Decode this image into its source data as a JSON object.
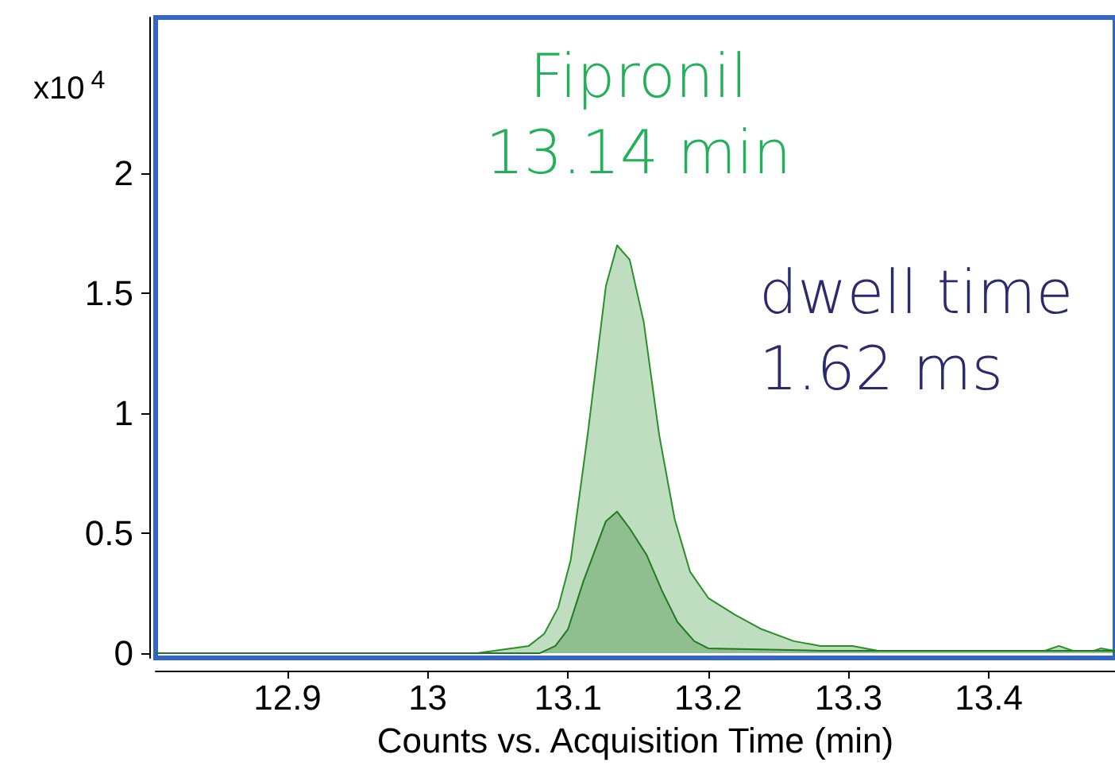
{
  "chart_data": {
    "type": "area",
    "xlabel": "Counts vs. Acquisition Time (min)",
    "ylabel": "x10$^{4}$",
    "annotations": [
      "Fipronil\n13.14 min",
      "dwell time\n1.62 ms"
    ],
    "xlim": [
      12.806,
      13.49
    ],
    "xticks": [
      12.9,
      13,
      13.1,
      13.2,
      13.3,
      13.4
    ],
    "ylim": [
      -0.02,
      2.65
    ],
    "yticks": [
      0,
      0.5,
      1,
      1.5,
      2
    ],
    "grid": false,
    "marker": "none",
    "line_style": "solid",
    "series": [
      {
        "color": "#2a8f2a",
        "x": [
          12.806,
          13.035,
          13.072,
          13.083,
          13.093,
          13.102,
          13.114,
          13.127,
          13.135,
          13.144,
          13.154,
          13.165,
          13.176,
          13.187,
          13.2,
          13.219,
          13.238,
          13.261,
          13.28,
          13.303,
          13.321,
          13.44,
          13.45,
          13.46,
          13.475,
          13.48,
          13.49
        ],
        "values": [
          0,
          0,
          0.03,
          0.08,
          0.19,
          0.39,
          0.91,
          1.53,
          1.7,
          1.64,
          1.38,
          0.91,
          0.56,
          0.34,
          0.23,
          0.16,
          0.1,
          0.05,
          0.03,
          0.03,
          0.01,
          0.01,
          0.03,
          0.01,
          0.01,
          0.02,
          0.01
        ]
      },
      {
        "color": "#217a21",
        "x": [
          12.806,
          13.08,
          13.091,
          13.1,
          13.111,
          13.127,
          13.135,
          13.144,
          13.156,
          13.167,
          13.178,
          13.19,
          13.2,
          13.28,
          13.49
        ],
        "values": [
          0,
          0,
          0.03,
          0.1,
          0.3,
          0.55,
          0.59,
          0.52,
          0.41,
          0.26,
          0.13,
          0.05,
          0.02,
          0.01,
          0.01
        ]
      }
    ]
  }
}
